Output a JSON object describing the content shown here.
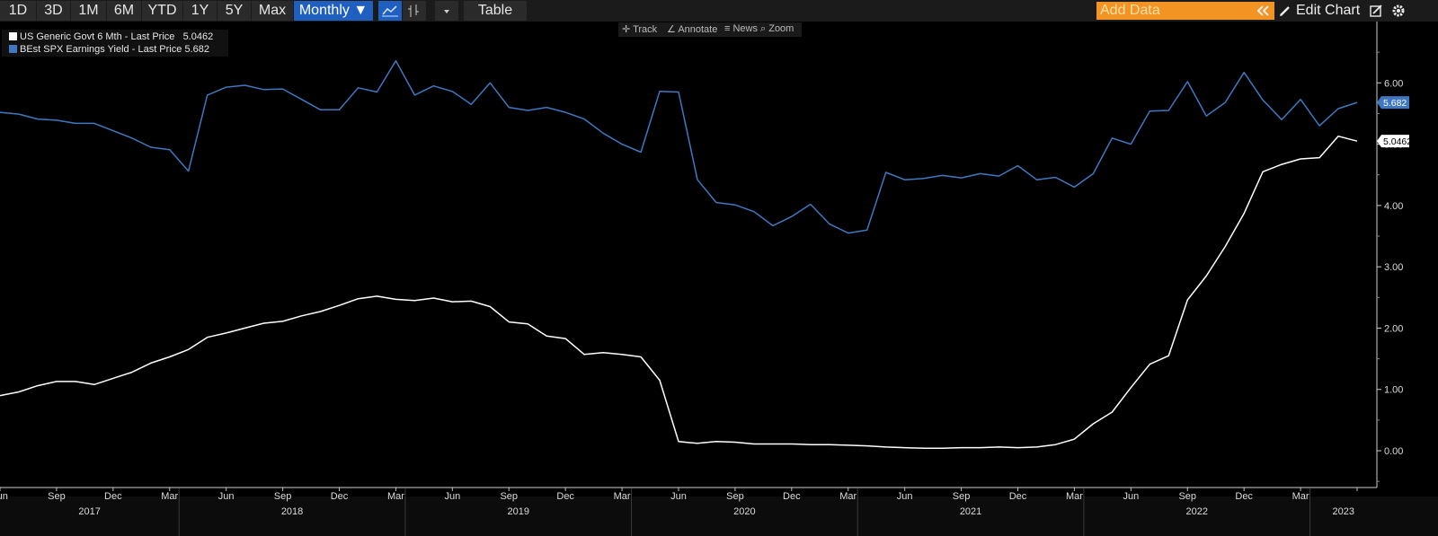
{
  "toolbar": {
    "ranges": [
      "1D",
      "3D",
      "1M",
      "6M",
      "YTD",
      "1Y",
      "5Y",
      "Max"
    ],
    "frequency": "Monthly ▼",
    "table_label": "Table",
    "add_data_placeholder": "Add Data",
    "edit_chart_label": "Edit Chart",
    "sub_tools": [
      "Track",
      "Annotate",
      "News",
      "Zoom"
    ]
  },
  "colors": {
    "white_series": "#ffffff",
    "blue_series": "#3f78c0",
    "background": "#000000"
  },
  "chart_data": {
    "type": "line",
    "ylim": [
      -0.6,
      7.0
    ],
    "y_ticks": [
      "0.00",
      "1.00",
      "2.00",
      "3.00",
      "4.00",
      "5.00",
      "6.00"
    ],
    "grid": false,
    "legend_position": "top-left",
    "x_month_labels": [
      "Jun",
      "Sep",
      "Dec",
      "Mar",
      "Jun",
      "Sep",
      "Dec",
      "Mar",
      "Jun",
      "Sep",
      "Dec",
      "Mar",
      "Jun",
      "Sep",
      "Dec",
      "Mar",
      "Jun",
      "Sep",
      "Dec",
      "Mar",
      "Jun",
      "Sep",
      "Dec",
      "Mar"
    ],
    "x_year_labels": [
      "2017",
      "2018",
      "2019",
      "2020",
      "2021",
      "2022",
      "2023"
    ],
    "x": [
      "2017-03",
      "2017-04",
      "2017-05",
      "2017-06",
      "2017-07",
      "2017-08",
      "2017-09",
      "2017-10",
      "2017-11",
      "2017-12",
      "2018-01",
      "2018-02",
      "2018-03",
      "2018-04",
      "2018-05",
      "2018-06",
      "2018-07",
      "2018-08",
      "2018-09",
      "2018-10",
      "2018-11",
      "2018-12",
      "2019-01",
      "2019-02",
      "2019-03",
      "2019-04",
      "2019-05",
      "2019-06",
      "2019-07",
      "2019-08",
      "2019-09",
      "2019-10",
      "2019-11",
      "2019-12",
      "2020-01",
      "2020-02",
      "2020-03",
      "2020-04",
      "2020-05",
      "2020-06",
      "2020-07",
      "2020-08",
      "2020-09",
      "2020-10",
      "2020-11",
      "2020-12",
      "2021-01",
      "2021-02",
      "2021-03",
      "2021-04",
      "2021-05",
      "2021-06",
      "2021-07",
      "2021-08",
      "2021-09",
      "2021-10",
      "2021-11",
      "2021-12",
      "2022-01",
      "2022-02",
      "2022-03",
      "2022-04",
      "2022-05",
      "2022-06",
      "2022-07",
      "2022-08",
      "2022-09",
      "2022-10",
      "2022-11",
      "2022-12",
      "2023-01",
      "2023-02",
      "2023-03"
    ],
    "series": [
      {
        "name": "US Generic Govt 6 Mth - Last Price",
        "last_value": "5.0462",
        "color": "#ffffff",
        "values": [
          0.9,
          0.96,
          1.06,
          1.13,
          1.13,
          1.08,
          1.18,
          1.28,
          1.43,
          1.53,
          1.65,
          1.85,
          1.92,
          2.0,
          2.08,
          2.11,
          2.2,
          2.27,
          2.37,
          2.48,
          2.52,
          2.47,
          2.45,
          2.49,
          2.43,
          2.44,
          2.35,
          2.1,
          2.07,
          1.87,
          1.83,
          1.57,
          1.6,
          1.57,
          1.53,
          1.15,
          0.15,
          0.12,
          0.15,
          0.14,
          0.11,
          0.11,
          0.11,
          0.1,
          0.1,
          0.09,
          0.08,
          0.06,
          0.05,
          0.04,
          0.04,
          0.05,
          0.05,
          0.06,
          0.05,
          0.06,
          0.1,
          0.19,
          0.44,
          0.63,
          1.03,
          1.41,
          1.55,
          2.46,
          2.85,
          3.33,
          3.87,
          4.55,
          4.67,
          4.76,
          4.78,
          5.13,
          5.05
        ]
      },
      {
        "name": "BEst SPX Earnings Yield - Last Price",
        "last_value": "5.682",
        "color": "#3f78c0",
        "values": [
          5.52,
          5.49,
          5.41,
          5.39,
          5.34,
          5.34,
          5.22,
          5.1,
          4.95,
          4.91,
          4.56,
          5.8,
          5.93,
          5.96,
          5.89,
          5.9,
          5.73,
          5.56,
          5.56,
          5.92,
          5.85,
          6.36,
          5.8,
          5.95,
          5.86,
          5.65,
          6.0,
          5.6,
          5.55,
          5.6,
          5.52,
          5.41,
          5.18,
          5.0,
          4.87,
          5.86,
          5.85,
          4.42,
          4.05,
          4.01,
          3.9,
          3.67,
          3.82,
          4.02,
          3.7,
          3.55,
          3.6,
          4.54,
          4.42,
          4.44,
          4.49,
          4.45,
          4.52,
          4.48,
          4.65,
          4.42,
          4.46,
          4.3,
          4.52,
          5.1,
          5.0,
          5.54,
          5.55,
          6.02,
          5.46,
          5.68,
          6.17,
          5.72,
          5.4,
          5.73,
          5.3,
          5.58,
          5.68
        ]
      }
    ]
  }
}
